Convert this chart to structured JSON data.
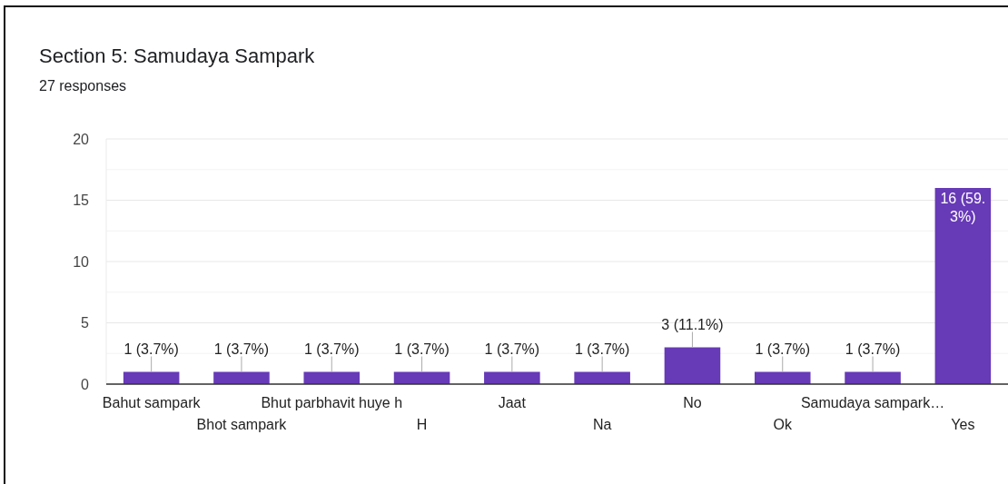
{
  "chart_data": {
    "type": "bar",
    "title": "Section 5: Samudaya Sampark",
    "subtitle": "27 responses",
    "categories": [
      "Bahut sampark",
      "Bhot sampark",
      "Bhut parbhavit huye h",
      "H",
      "Jaat",
      "Na",
      "No",
      "Ok",
      "Samudaya sampark…",
      "Yes"
    ],
    "values": [
      1,
      1,
      1,
      1,
      1,
      1,
      3,
      1,
      1,
      16
    ],
    "color": "#673ab7",
    "value_labels": [
      "1 (3.7%)",
      "1 (3.7%)",
      "1 (3.7%)",
      "1 (3.7%)",
      "1 (3.7%)",
      "1 (3.7%)",
      "3 (11.1%)",
      "1 (3.7%)",
      "1 (3.7%)",
      "16 (59.3%)"
    ],
    "ylim": [
      0,
      20
    ],
    "yticks": [
      0,
      {
        "value": 2.5,
        "label": null
      },
      5,
      {
        "value": 7.5,
        "label": null
      },
      10,
      {
        "value": 12.5,
        "label": null
      },
      15,
      {
        "value": 17.5,
        "label": null
      },
      20
    ],
    "grid": true
  }
}
